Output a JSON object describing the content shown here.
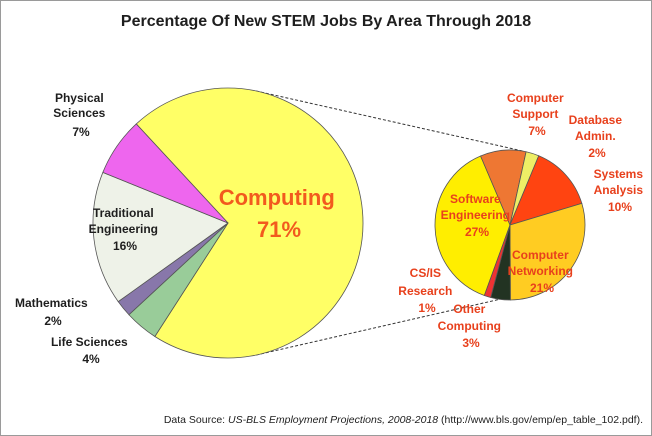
{
  "chart_data": [
    {
      "type": "pie",
      "title": "Percentage Of New STEM Jobs By Area Through 2018",
      "slices": [
        {
          "name": "Computing",
          "value": 71,
          "label": "71%",
          "color": "#ffff66"
        },
        {
          "name": "Life Sciences",
          "value": 4,
          "label": "4%",
          "color": "#99cc99"
        },
        {
          "name": "Mathematics",
          "value": 2,
          "label": "2%",
          "color": "#8877aa"
        },
        {
          "name": "Traditional Engineering",
          "value": 16,
          "label": "16%",
          "color": "#eef2e8"
        },
        {
          "name": "Physical Sciences",
          "value": 7,
          "label": "7%",
          "color": "#ee66ee"
        }
      ]
    },
    {
      "type": "pie",
      "title": "",
      "slices": [
        {
          "name": "Software Engineering",
          "value": 27,
          "label": "27%",
          "color": "#ffee00"
        },
        {
          "name": "Computer Support",
          "value": 7,
          "label": "7%",
          "color": "#ee7733"
        },
        {
          "name": "Database Admin.",
          "value": 2,
          "label": "2%",
          "color": "#eeee66"
        },
        {
          "name": "Systems Analysis",
          "value": 10,
          "label": "10%",
          "color": "#ff4411"
        },
        {
          "name": "Computer Networking",
          "value": 21,
          "label": "21%",
          "color": "#ffcc22"
        },
        {
          "name": "Other Computing",
          "value": 3,
          "label": "3%",
          "color": "#223322"
        },
        {
          "name": "CS/IS Research",
          "value": 1,
          "label": "1%",
          "color": "#ee3333"
        }
      ]
    }
  ],
  "labels": {
    "physical_l1": "Physical",
    "physical_l2": "Sciences",
    "physical_pct": "7%",
    "trad_l1": "Traditional",
    "trad_l2": "Engineering",
    "trad_pct": "16%",
    "math_l1": "Mathematics",
    "math_pct": "2%",
    "life_l1": "Life Sciences",
    "life_pct": "4%",
    "computing_name": "Computing",
    "computing_pct": "71%",
    "csupport_l1": "Computer",
    "csupport_l2": "Support",
    "csupport_pct": "7%",
    "db_l1": "Database",
    "db_l2": "Admin.",
    "db_pct": "2%",
    "sys_l1": "Systems",
    "sys_l2": "Analysis",
    "sys_pct": "10%",
    "soft_l1": "Software",
    "soft_l2": "Engineering",
    "soft_pct": "27%",
    "net_l1": "Computer",
    "net_l2": "Networking",
    "net_pct": "21%",
    "csis_l1": "CS/IS",
    "csis_l2": "Research",
    "csis_pct": "1%",
    "other_l1": "Other",
    "other_l2": "Computing",
    "other_pct": "3%"
  },
  "source": {
    "prefix": "Data Source: ",
    "italic": "US-BLS Employment Projections, 2008-2018",
    "suffix": " (http://www.bls.gov/emp/ep_table_102.pdf)."
  }
}
